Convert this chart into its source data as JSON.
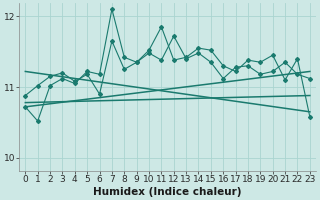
{
  "xlabel": "Humidex (Indice chaleur)",
  "bg_color": "#cde8e5",
  "line_color": "#1a7a6e",
  "grid_color": "#aad4d0",
  "xlim": [
    -0.5,
    23.5
  ],
  "ylim": [
    9.82,
    12.18
  ],
  "yticks": [
    10,
    11,
    12
  ],
  "xticks": [
    0,
    1,
    2,
    3,
    4,
    5,
    6,
    7,
    8,
    9,
    10,
    11,
    12,
    13,
    14,
    15,
    16,
    17,
    18,
    19,
    20,
    21,
    22,
    23
  ],
  "series1_x": [
    0,
    1,
    2,
    3,
    4,
    5,
    6,
    7,
    8,
    9,
    10,
    11,
    12,
    13,
    14,
    15,
    16,
    17,
    18,
    19,
    20,
    21,
    22,
    23
  ],
  "series1_y": [
    10.88,
    11.02,
    11.15,
    11.2,
    11.08,
    11.18,
    10.9,
    11.65,
    11.25,
    11.35,
    11.48,
    11.38,
    11.72,
    11.4,
    11.48,
    11.35,
    11.12,
    11.28,
    11.3,
    11.18,
    11.22,
    11.35,
    11.18,
    11.12
  ],
  "series2_x": [
    0,
    1,
    2,
    3,
    4,
    5,
    6,
    7,
    8,
    9,
    10,
    11,
    12,
    13,
    14,
    15,
    16,
    17,
    18,
    19,
    20,
    21,
    22,
    23
  ],
  "series2_y": [
    10.72,
    10.52,
    11.02,
    11.12,
    11.05,
    11.22,
    11.18,
    12.1,
    11.42,
    11.35,
    11.52,
    11.85,
    11.38,
    11.42,
    11.55,
    11.52,
    11.3,
    11.22,
    11.38,
    11.35,
    11.45,
    11.1,
    11.4,
    10.58
  ],
  "trend1_x": [
    0,
    23
  ],
  "trend1_y": [
    10.72,
    11.22
  ],
  "trend2_x": [
    0,
    23
  ],
  "trend2_y": [
    11.22,
    10.65
  ],
  "trend3_x": [
    0,
    23
  ],
  "trend3_y": [
    10.78,
    10.88
  ],
  "tick_fontsize": 6.5,
  "label_fontsize": 7.5
}
